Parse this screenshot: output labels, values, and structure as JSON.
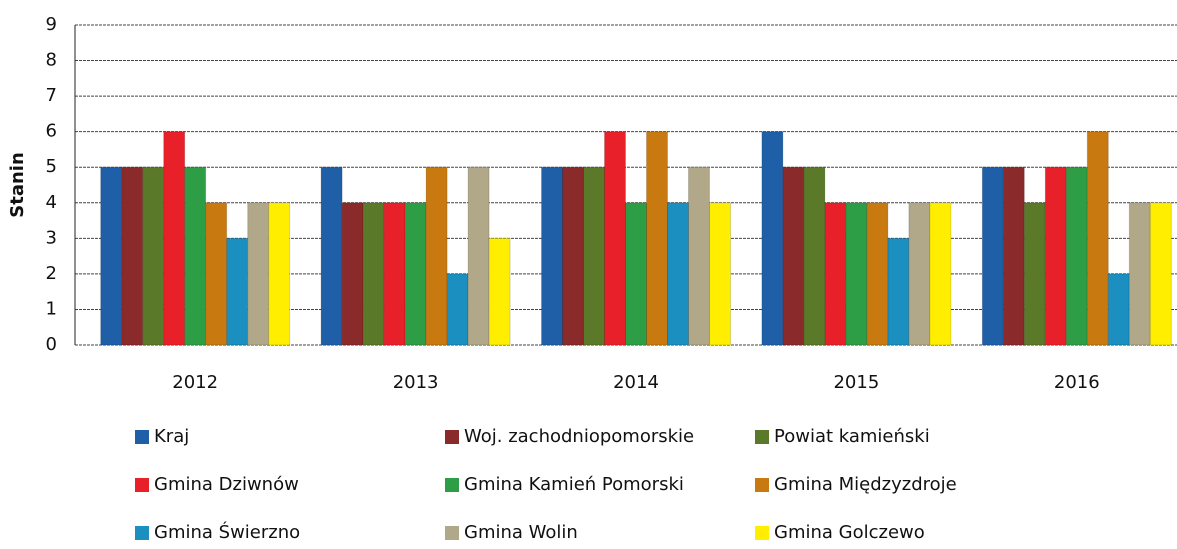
{
  "chart_data": {
    "type": "bar",
    "ylabel": "Stanin",
    "categories": [
      "2012",
      "2013",
      "2014",
      "2015",
      "2016"
    ],
    "series": [
      {
        "name": "Kraj",
        "color": "#1f5fa8",
        "values": [
          5,
          5,
          5,
          6,
          5
        ]
      },
      {
        "name": "Woj. zachodniopomorskie",
        "color": "#8b2a2a",
        "values": [
          5,
          4,
          5,
          5,
          5
        ]
      },
      {
        "name": "Powiat kamieński",
        "color": "#5a7a2a",
        "values": [
          5,
          4,
          5,
          5,
          4
        ]
      },
      {
        "name": "Gmina Dziwnów",
        "color": "#e8202a",
        "values": [
          6,
          4,
          6,
          4,
          5
        ]
      },
      {
        "name": "Gmina Kamień Pomorski",
        "color": "#2e9e46",
        "values": [
          5,
          4,
          4,
          4,
          5
        ]
      },
      {
        "name": "Gmina Międzyzdroje",
        "color": "#c87a10",
        "values": [
          4,
          5,
          6,
          4,
          6
        ]
      },
      {
        "name": "Gmina Świerzno",
        "color": "#1a8fc0",
        "values": [
          3,
          2,
          4,
          3,
          2
        ]
      },
      {
        "name": "Gmina Wolin",
        "color": "#b0a888",
        "values": [
          4,
          5,
          5,
          4,
          4
        ]
      },
      {
        "name": "Gmina Golczewo",
        "color": "#ffee00",
        "values": [
          4,
          3,
          4,
          4,
          4
        ]
      }
    ],
    "ylim": [
      0,
      9
    ],
    "yticks": [
      0,
      1,
      2,
      3,
      4,
      5,
      6,
      7,
      8,
      9
    ],
    "grid": true
  }
}
